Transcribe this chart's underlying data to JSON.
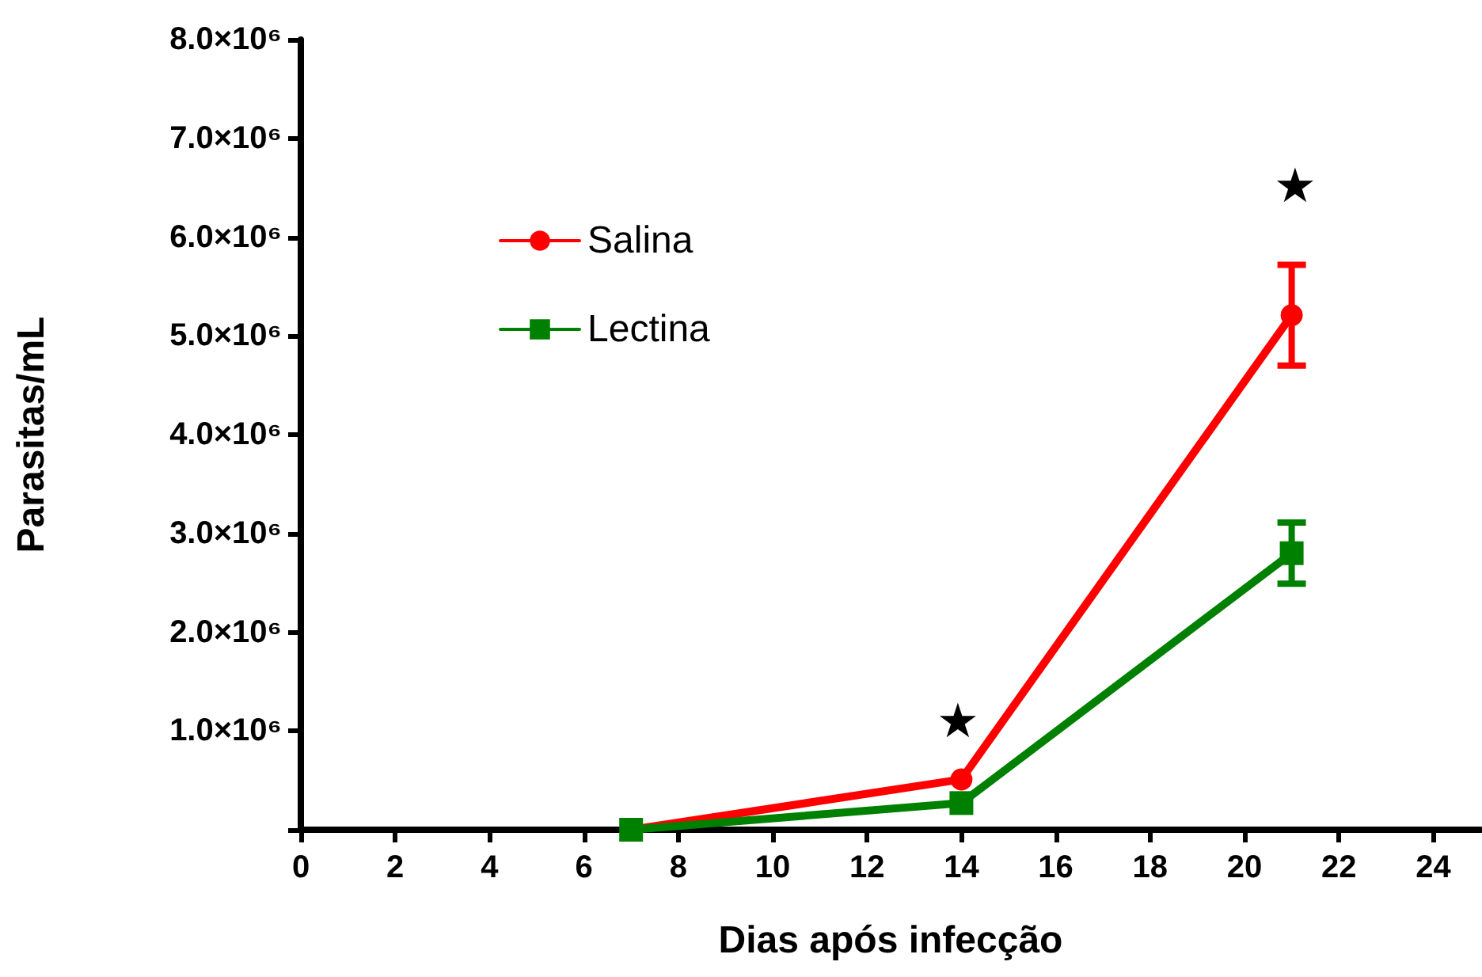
{
  "chart_data": {
    "type": "line",
    "xlabel": "Dias após infecção",
    "ylabel": "Parasitas/mL",
    "x": [
      7,
      14,
      21
    ],
    "series": [
      {
        "name": "Salina",
        "color": "#ff0000",
        "marker": "circle",
        "values": [
          0,
          510000,
          5210000
        ],
        "errors": [
          null,
          null,
          510000
        ]
      },
      {
        "name": "Lectina",
        "color": "#008000",
        "marker": "square",
        "values": [
          0,
          270000,
          2800000
        ],
        "errors": [
          null,
          null,
          310000
        ]
      }
    ],
    "xlim": [
      0,
      25
    ],
    "xticks": [
      0,
      2,
      4,
      6,
      8,
      10,
      12,
      14,
      16,
      18,
      20,
      22,
      24
    ],
    "ylim": [
      0,
      8000000
    ],
    "yticks": [
      {
        "value": 0,
        "label": null
      },
      {
        "value": 1000000,
        "label": "1.0×10⁶"
      },
      {
        "value": 2000000,
        "label": "2.0×10⁶"
      },
      {
        "value": 3000000,
        "label": "3.0×10⁶"
      },
      {
        "value": 4000000,
        "label": "4.0×10⁶"
      },
      {
        "value": 5000000,
        "label": "5.0×10⁶"
      },
      {
        "value": 6000000,
        "label": "6.0×10⁶"
      },
      {
        "value": 7000000,
        "label": "7.0×10⁶"
      },
      {
        "value": 8000000,
        "label": "8.0×10⁶"
      }
    ],
    "annotations": [
      "★",
      "★"
    ],
    "legend": "top left",
    "grid": false,
    "line_style": "solid"
  }
}
